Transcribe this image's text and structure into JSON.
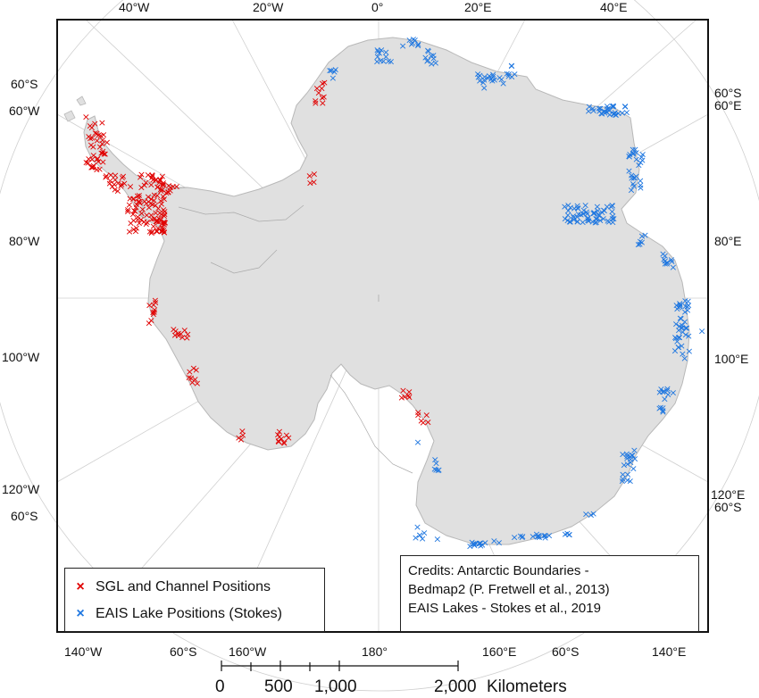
{
  "map": {
    "graticule_labels": {
      "top": [
        "40°W",
        "20°W",
        "0°",
        "20°E",
        "40°E"
      ],
      "left": [
        "60°S",
        "60°W",
        "80°W",
        "100°W",
        "120°W",
        "60°S"
      ],
      "right": [
        "60°S",
        "60°E",
        "80°E",
        "100°E",
        "120°E",
        "60°S"
      ],
      "bottom": [
        "140°W",
        "60°S",
        "160°W",
        "180°",
        "160°E",
        "60°S",
        "140°E"
      ]
    },
    "legend": {
      "items": [
        {
          "label": "SGL and Channel Positions",
          "color": "#e00000",
          "marker": "×"
        },
        {
          "label": "EAIS Lake Positions (Stokes)",
          "color": "#1f77e0",
          "marker": "×"
        }
      ]
    },
    "credits": {
      "line1": "Credits: Antarctic Boundaries -",
      "line2": "Bedmap2 (P. Fretwell et al., 2013)",
      "line3": "EAIS Lakes - Stokes et al., 2019"
    },
    "scalebar": {
      "ticks": [
        "0",
        "500",
        "1,000",
        "2,000"
      ],
      "unit": "Kilometers"
    },
    "colors": {
      "land": "#e0e0e0",
      "coast": "#bdbdbd",
      "graticule": "#c8c8c8",
      "sgl": "#e00000",
      "eais": "#1f77e0"
    }
  }
}
